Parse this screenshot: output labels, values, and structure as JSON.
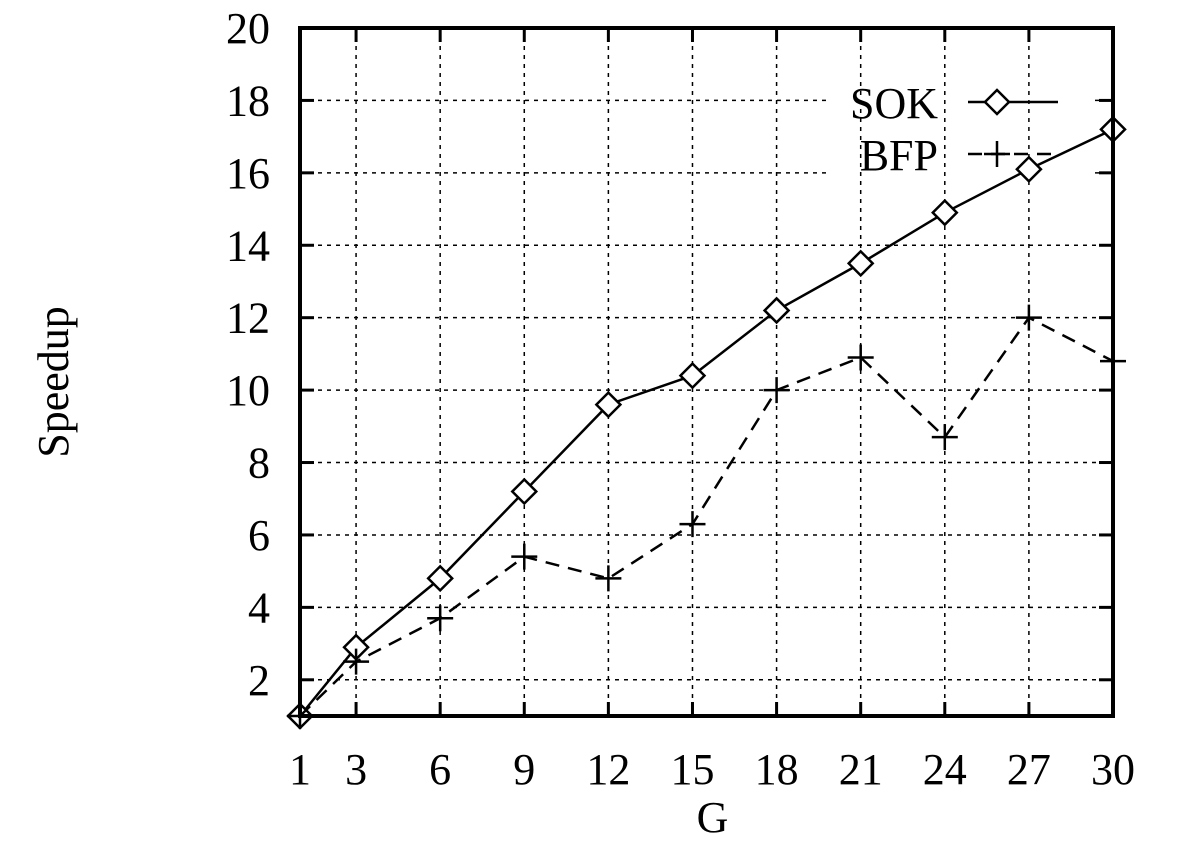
{
  "chart_data": {
    "type": "line",
    "xlabel": "G",
    "ylabel": "Speedup",
    "x_ticks": [
      1,
      3,
      6,
      9,
      12,
      15,
      18,
      21,
      24,
      27,
      30
    ],
    "y_ticks": [
      2,
      4,
      6,
      8,
      10,
      12,
      14,
      16,
      18,
      20
    ],
    "xlim": [
      1,
      30
    ],
    "ylim": [
      1,
      20
    ],
    "grid": true,
    "legend_position": "top-right",
    "series": [
      {
        "name": "SOK",
        "marker": "diamond",
        "line_style": "solid",
        "color": "#000000",
        "x": [
          1,
          3,
          6,
          9,
          12,
          15,
          18,
          21,
          24,
          27,
          30
        ],
        "y": [
          1.0,
          2.9,
          4.8,
          7.2,
          9.6,
          10.4,
          12.2,
          13.5,
          14.9,
          16.1,
          17.2
        ]
      },
      {
        "name": "BFP",
        "marker": "plus",
        "line_style": "dashed",
        "color": "#000000",
        "x": [
          1,
          3,
          6,
          9,
          12,
          15,
          18,
          21,
          24,
          27,
          30
        ],
        "y": [
          1.0,
          2.5,
          3.7,
          5.4,
          4.8,
          6.3,
          10.0,
          10.9,
          8.7,
          12.0,
          10.8
        ]
      }
    ]
  }
}
